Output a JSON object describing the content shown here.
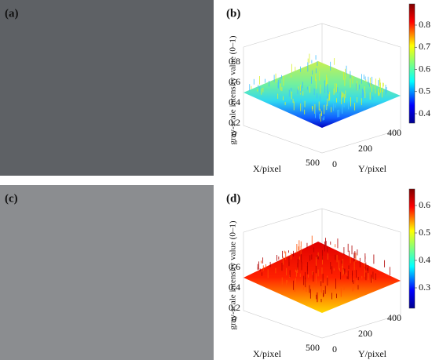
{
  "panels": [
    {
      "label": "(a)"
    },
    {
      "label": "(b)",
      "z_label": "gray-scale intensity value (0–1)",
      "z_ticks": [
        0.2,
        0.4,
        0.6,
        0.8
      ],
      "x_label": "X/pixel",
      "x_ticks": [
        0,
        500
      ],
      "y_label": "Y/pixel",
      "y_ticks": [
        0,
        200,
        400
      ],
      "colorbar_ticks": [
        0.4,
        0.5,
        0.6,
        0.7,
        0.8
      ]
    },
    {
      "label": "(c)"
    },
    {
      "label": "(d)",
      "z_label": "gray-scale intensity value (0–1)",
      "z_ticks": [
        0.2,
        0.4,
        0.6
      ],
      "x_label": "X/pixel",
      "x_ticks": [
        0,
        500
      ],
      "y_label": "Y/pixel",
      "y_ticks": [
        0,
        200,
        400
      ],
      "colorbar_ticks": [
        0.3,
        0.4,
        0.5,
        0.6
      ]
    }
  ]
}
